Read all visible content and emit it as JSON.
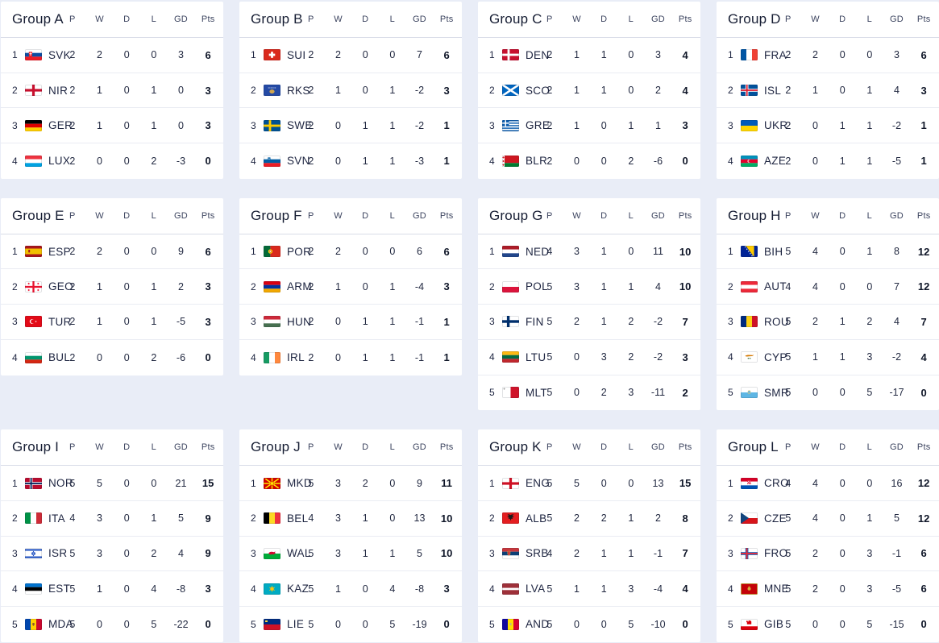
{
  "columns": {
    "p": "P",
    "w": "W",
    "d": "D",
    "l": "L",
    "gd": "GD",
    "pts": "Pts"
  },
  "groups": [
    {
      "title": "Group A",
      "rows": [
        {
          "pos": "1",
          "code": "SVK",
          "flag_icon": "slovakia-flag-icon",
          "p": "2",
          "w": "2",
          "d": "0",
          "l": "0",
          "gd": "3",
          "pts": "6"
        },
        {
          "pos": "2",
          "code": "NIR",
          "flag_icon": "northern-ireland-flag-icon",
          "p": "2",
          "w": "1",
          "d": "0",
          "l": "1",
          "gd": "0",
          "pts": "3"
        },
        {
          "pos": "3",
          "code": "GER",
          "flag_icon": "germany-flag-icon",
          "p": "2",
          "w": "1",
          "d": "0",
          "l": "1",
          "gd": "0",
          "pts": "3"
        },
        {
          "pos": "4",
          "code": "LUX",
          "flag_icon": "luxembourg-flag-icon",
          "p": "2",
          "w": "0",
          "d": "0",
          "l": "2",
          "gd": "-3",
          "pts": "0"
        }
      ]
    },
    {
      "title": "Group B",
      "rows": [
        {
          "pos": "1",
          "code": "SUI",
          "flag_icon": "switzerland-flag-icon",
          "p": "2",
          "w": "2",
          "d": "0",
          "l": "0",
          "gd": "7",
          "pts": "6"
        },
        {
          "pos": "2",
          "code": "RKS",
          "flag_icon": "kosovo-flag-icon",
          "p": "2",
          "w": "1",
          "d": "0",
          "l": "1",
          "gd": "-2",
          "pts": "3"
        },
        {
          "pos": "3",
          "code": "SWE",
          "flag_icon": "sweden-flag-icon",
          "p": "2",
          "w": "0",
          "d": "1",
          "l": "1",
          "gd": "-2",
          "pts": "1"
        },
        {
          "pos": "4",
          "code": "SVN",
          "flag_icon": "slovenia-flag-icon",
          "p": "2",
          "w": "0",
          "d": "1",
          "l": "1",
          "gd": "-3",
          "pts": "1"
        }
      ]
    },
    {
      "title": "Group C",
      "rows": [
        {
          "pos": "1",
          "code": "DEN",
          "flag_icon": "denmark-flag-icon",
          "p": "2",
          "w": "1",
          "d": "1",
          "l": "0",
          "gd": "3",
          "pts": "4"
        },
        {
          "pos": "2",
          "code": "SCO",
          "flag_icon": "scotland-flag-icon",
          "p": "2",
          "w": "1",
          "d": "1",
          "l": "0",
          "gd": "2",
          "pts": "4"
        },
        {
          "pos": "3",
          "code": "GRE",
          "flag_icon": "greece-flag-icon",
          "p": "2",
          "w": "1",
          "d": "0",
          "l": "1",
          "gd": "1",
          "pts": "3"
        },
        {
          "pos": "4",
          "code": "BLR",
          "flag_icon": "belarus-flag-icon",
          "p": "2",
          "w": "0",
          "d": "0",
          "l": "2",
          "gd": "-6",
          "pts": "0"
        }
      ]
    },
    {
      "title": "Group D",
      "rows": [
        {
          "pos": "1",
          "code": "FRA",
          "flag_icon": "france-flag-icon",
          "p": "2",
          "w": "2",
          "d": "0",
          "l": "0",
          "gd": "3",
          "pts": "6"
        },
        {
          "pos": "2",
          "code": "ISL",
          "flag_icon": "iceland-flag-icon",
          "p": "2",
          "w": "1",
          "d": "0",
          "l": "1",
          "gd": "4",
          "pts": "3"
        },
        {
          "pos": "3",
          "code": "UKR",
          "flag_icon": "ukraine-flag-icon",
          "p": "2",
          "w": "0",
          "d": "1",
          "l": "1",
          "gd": "-2",
          "pts": "1"
        },
        {
          "pos": "4",
          "code": "AZE",
          "flag_icon": "azerbaijan-flag-icon",
          "p": "2",
          "w": "0",
          "d": "1",
          "l": "1",
          "gd": "-5",
          "pts": "1"
        }
      ]
    },
    {
      "title": "Group E",
      "rows": [
        {
          "pos": "1",
          "code": "ESP",
          "flag_icon": "spain-flag-icon",
          "p": "2",
          "w": "2",
          "d": "0",
          "l": "0",
          "gd": "9",
          "pts": "6"
        },
        {
          "pos": "2",
          "code": "GEO",
          "flag_icon": "georgia-flag-icon",
          "p": "2",
          "w": "1",
          "d": "0",
          "l": "1",
          "gd": "2",
          "pts": "3"
        },
        {
          "pos": "3",
          "code": "TUR",
          "flag_icon": "turkey-flag-icon",
          "p": "2",
          "w": "1",
          "d": "0",
          "l": "1",
          "gd": "-5",
          "pts": "3"
        },
        {
          "pos": "4",
          "code": "BUL",
          "flag_icon": "bulgaria-flag-icon",
          "p": "2",
          "w": "0",
          "d": "0",
          "l": "2",
          "gd": "-6",
          "pts": "0"
        }
      ]
    },
    {
      "title": "Group F",
      "rows": [
        {
          "pos": "1",
          "code": "POR",
          "flag_icon": "portugal-flag-icon",
          "p": "2",
          "w": "2",
          "d": "0",
          "l": "0",
          "gd": "6",
          "pts": "6"
        },
        {
          "pos": "2",
          "code": "ARM",
          "flag_icon": "armenia-flag-icon",
          "p": "2",
          "w": "1",
          "d": "0",
          "l": "1",
          "gd": "-4",
          "pts": "3"
        },
        {
          "pos": "3",
          "code": "HUN",
          "flag_icon": "hungary-flag-icon",
          "p": "2",
          "w": "0",
          "d": "1",
          "l": "1",
          "gd": "-1",
          "pts": "1"
        },
        {
          "pos": "4",
          "code": "IRL",
          "flag_icon": "ireland-flag-icon",
          "p": "2",
          "w": "0",
          "d": "1",
          "l": "1",
          "gd": "-1",
          "pts": "1"
        }
      ]
    },
    {
      "title": "Group G",
      "rows": [
        {
          "pos": "1",
          "code": "NED",
          "flag_icon": "netherlands-flag-icon",
          "p": "4",
          "w": "3",
          "d": "1",
          "l": "0",
          "gd": "11",
          "pts": "10"
        },
        {
          "pos": "2",
          "code": "POL",
          "flag_icon": "poland-flag-icon",
          "p": "5",
          "w": "3",
          "d": "1",
          "l": "1",
          "gd": "4",
          "pts": "10"
        },
        {
          "pos": "3",
          "code": "FIN",
          "flag_icon": "finland-flag-icon",
          "p": "5",
          "w": "2",
          "d": "1",
          "l": "2",
          "gd": "-2",
          "pts": "7"
        },
        {
          "pos": "4",
          "code": "LTU",
          "flag_icon": "lithuania-flag-icon",
          "p": "5",
          "w": "0",
          "d": "3",
          "l": "2",
          "gd": "-2",
          "pts": "3"
        },
        {
          "pos": "5",
          "code": "MLT",
          "flag_icon": "malta-flag-icon",
          "p": "5",
          "w": "0",
          "d": "2",
          "l": "3",
          "gd": "-11",
          "pts": "2"
        }
      ]
    },
    {
      "title": "Group H",
      "rows": [
        {
          "pos": "1",
          "code": "BIH",
          "flag_icon": "bosnia-herzegovina-flag-icon",
          "p": "5",
          "w": "4",
          "d": "0",
          "l": "1",
          "gd": "8",
          "pts": "12"
        },
        {
          "pos": "2",
          "code": "AUT",
          "flag_icon": "austria-flag-icon",
          "p": "4",
          "w": "4",
          "d": "0",
          "l": "0",
          "gd": "7",
          "pts": "12"
        },
        {
          "pos": "3",
          "code": "ROU",
          "flag_icon": "romania-flag-icon",
          "p": "5",
          "w": "2",
          "d": "1",
          "l": "2",
          "gd": "4",
          "pts": "7"
        },
        {
          "pos": "4",
          "code": "CYP",
          "flag_icon": "cyprus-flag-icon",
          "p": "5",
          "w": "1",
          "d": "1",
          "l": "3",
          "gd": "-2",
          "pts": "4"
        },
        {
          "pos": "5",
          "code": "SMR",
          "flag_icon": "san-marino-flag-icon",
          "p": "5",
          "w": "0",
          "d": "0",
          "l": "5",
          "gd": "-17",
          "pts": "0"
        }
      ]
    },
    {
      "title": "Group I",
      "rows": [
        {
          "pos": "1",
          "code": "NOR",
          "flag_icon": "norway-flag-icon",
          "p": "5",
          "w": "5",
          "d": "0",
          "l": "0",
          "gd": "21",
          "pts": "15"
        },
        {
          "pos": "2",
          "code": "ITA",
          "flag_icon": "italy-flag-icon",
          "p": "4",
          "w": "3",
          "d": "0",
          "l": "1",
          "gd": "5",
          "pts": "9"
        },
        {
          "pos": "3",
          "code": "ISR",
          "flag_icon": "israel-flag-icon",
          "p": "5",
          "w": "3",
          "d": "0",
          "l": "2",
          "gd": "4",
          "pts": "9"
        },
        {
          "pos": "4",
          "code": "EST",
          "flag_icon": "estonia-flag-icon",
          "p": "5",
          "w": "1",
          "d": "0",
          "l": "4",
          "gd": "-8",
          "pts": "3"
        },
        {
          "pos": "5",
          "code": "MDA",
          "flag_icon": "moldova-flag-icon",
          "p": "5",
          "w": "0",
          "d": "0",
          "l": "5",
          "gd": "-22",
          "pts": "0"
        }
      ]
    },
    {
      "title": "Group J",
      "rows": [
        {
          "pos": "1",
          "code": "MKD",
          "flag_icon": "north-macedonia-flag-icon",
          "p": "5",
          "w": "3",
          "d": "2",
          "l": "0",
          "gd": "9",
          "pts": "11"
        },
        {
          "pos": "2",
          "code": "BEL",
          "flag_icon": "belgium-flag-icon",
          "p": "4",
          "w": "3",
          "d": "1",
          "l": "0",
          "gd": "13",
          "pts": "10"
        },
        {
          "pos": "3",
          "code": "WAL",
          "flag_icon": "wales-flag-icon",
          "p": "5",
          "w": "3",
          "d": "1",
          "l": "1",
          "gd": "5",
          "pts": "10"
        },
        {
          "pos": "4",
          "code": "KAZ",
          "flag_icon": "kazakhstan-flag-icon",
          "p": "5",
          "w": "1",
          "d": "0",
          "l": "4",
          "gd": "-8",
          "pts": "3"
        },
        {
          "pos": "5",
          "code": "LIE",
          "flag_icon": "liechtenstein-flag-icon",
          "p": "5",
          "w": "0",
          "d": "0",
          "l": "5",
          "gd": "-19",
          "pts": "0"
        }
      ]
    },
    {
      "title": "Group K",
      "rows": [
        {
          "pos": "1",
          "code": "ENG",
          "flag_icon": "england-flag-icon",
          "p": "5",
          "w": "5",
          "d": "0",
          "l": "0",
          "gd": "13",
          "pts": "15"
        },
        {
          "pos": "2",
          "code": "ALB",
          "flag_icon": "albania-flag-icon",
          "p": "5",
          "w": "2",
          "d": "2",
          "l": "1",
          "gd": "2",
          "pts": "8"
        },
        {
          "pos": "3",
          "code": "SRB",
          "flag_icon": "serbia-flag-icon",
          "p": "4",
          "w": "2",
          "d": "1",
          "l": "1",
          "gd": "-1",
          "pts": "7"
        },
        {
          "pos": "4",
          "code": "LVA",
          "flag_icon": "latvia-flag-icon",
          "p": "5",
          "w": "1",
          "d": "1",
          "l": "3",
          "gd": "-4",
          "pts": "4"
        },
        {
          "pos": "5",
          "code": "AND",
          "flag_icon": "andorra-flag-icon",
          "p": "5",
          "w": "0",
          "d": "0",
          "l": "5",
          "gd": "-10",
          "pts": "0"
        }
      ]
    },
    {
      "title": "Group L",
      "rows": [
        {
          "pos": "1",
          "code": "CRO",
          "flag_icon": "croatia-flag-icon",
          "p": "4",
          "w": "4",
          "d": "0",
          "l": "0",
          "gd": "16",
          "pts": "12"
        },
        {
          "pos": "2",
          "code": "CZE",
          "flag_icon": "czechia-flag-icon",
          "p": "5",
          "w": "4",
          "d": "0",
          "l": "1",
          "gd": "5",
          "pts": "12"
        },
        {
          "pos": "3",
          "code": "FRO",
          "flag_icon": "faroe-islands-flag-icon",
          "p": "5",
          "w": "2",
          "d": "0",
          "l": "3",
          "gd": "-1",
          "pts": "6"
        },
        {
          "pos": "4",
          "code": "MNE",
          "flag_icon": "montenegro-flag-icon",
          "p": "5",
          "w": "2",
          "d": "0",
          "l": "3",
          "gd": "-5",
          "pts": "6"
        },
        {
          "pos": "5",
          "code": "GIB",
          "flag_icon": "gibraltar-flag-icon",
          "p": "5",
          "w": "0",
          "d": "0",
          "l": "5",
          "gd": "-15",
          "pts": "0"
        }
      ]
    }
  ]
}
